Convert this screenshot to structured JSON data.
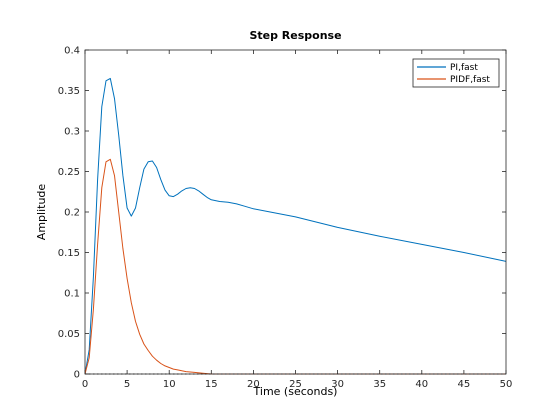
{
  "chart_data": {
    "type": "line",
    "title": "Step Response",
    "xlabel": "Time (seconds)",
    "ylabel": "Amplitude",
    "xlim": [
      0,
      50
    ],
    "ylim": [
      0,
      0.4
    ],
    "xticks": [
      0,
      5,
      10,
      15,
      20,
      25,
      30,
      35,
      40,
      45,
      50
    ],
    "yticks": [
      0,
      0.05,
      0.1,
      0.15,
      0.2,
      0.25,
      0.3,
      0.35,
      0.4
    ],
    "xtick_labels": [
      "0",
      "5",
      "10",
      "15",
      "20",
      "25",
      "30",
      "35",
      "40",
      "45",
      "50"
    ],
    "ytick_labels": [
      "0",
      "0.05",
      "0.1",
      "0.15",
      "0.2",
      "0.25",
      "0.3",
      "0.35",
      "0.4"
    ],
    "grid": false,
    "legend_position": "top-right",
    "series": [
      {
        "name": "PI,fast",
        "color": "#0072BD",
        "x": [
          0,
          0.5,
          1,
          1.5,
          2,
          2.5,
          3,
          3.5,
          4,
          4.5,
          5,
          5.5,
          6,
          6.5,
          7,
          7.5,
          8,
          8.5,
          9,
          9.5,
          10,
          10.5,
          11,
          11.5,
          12,
          12.5,
          13,
          13.5,
          14,
          14.5,
          15,
          16,
          17,
          18,
          19,
          20,
          22,
          25,
          30,
          35,
          40,
          45,
          50
        ],
        "y": [
          0,
          0.03,
          0.12,
          0.24,
          0.33,
          0.362,
          0.365,
          0.34,
          0.295,
          0.245,
          0.205,
          0.195,
          0.205,
          0.23,
          0.253,
          0.262,
          0.263,
          0.255,
          0.24,
          0.227,
          0.22,
          0.219,
          0.222,
          0.226,
          0.229,
          0.23,
          0.229,
          0.226,
          0.222,
          0.218,
          0.215,
          0.213,
          0.212,
          0.21,
          0.207,
          0.204,
          0.2,
          0.194,
          0.181,
          0.17,
          0.16,
          0.15,
          0.139
        ]
      },
      {
        "name": "PIDF,fast",
        "color": "#D95319",
        "x": [
          0,
          0.5,
          1,
          1.5,
          2,
          2.5,
          3,
          3.5,
          4,
          4.5,
          5,
          5.5,
          6,
          6.5,
          7,
          7.5,
          8,
          8.5,
          9,
          9.5,
          10,
          10.5,
          11,
          11.5,
          12,
          13,
          14,
          15,
          20,
          30,
          40,
          50
        ],
        "y": [
          0,
          0.02,
          0.08,
          0.16,
          0.23,
          0.262,
          0.265,
          0.245,
          0.2,
          0.155,
          0.118,
          0.088,
          0.065,
          0.049,
          0.037,
          0.029,
          0.022,
          0.017,
          0.013,
          0.01,
          0.008,
          0.006,
          0.005,
          0.004,
          0.003,
          0.002,
          0.001,
          0,
          0,
          0,
          0,
          0
        ]
      }
    ]
  }
}
